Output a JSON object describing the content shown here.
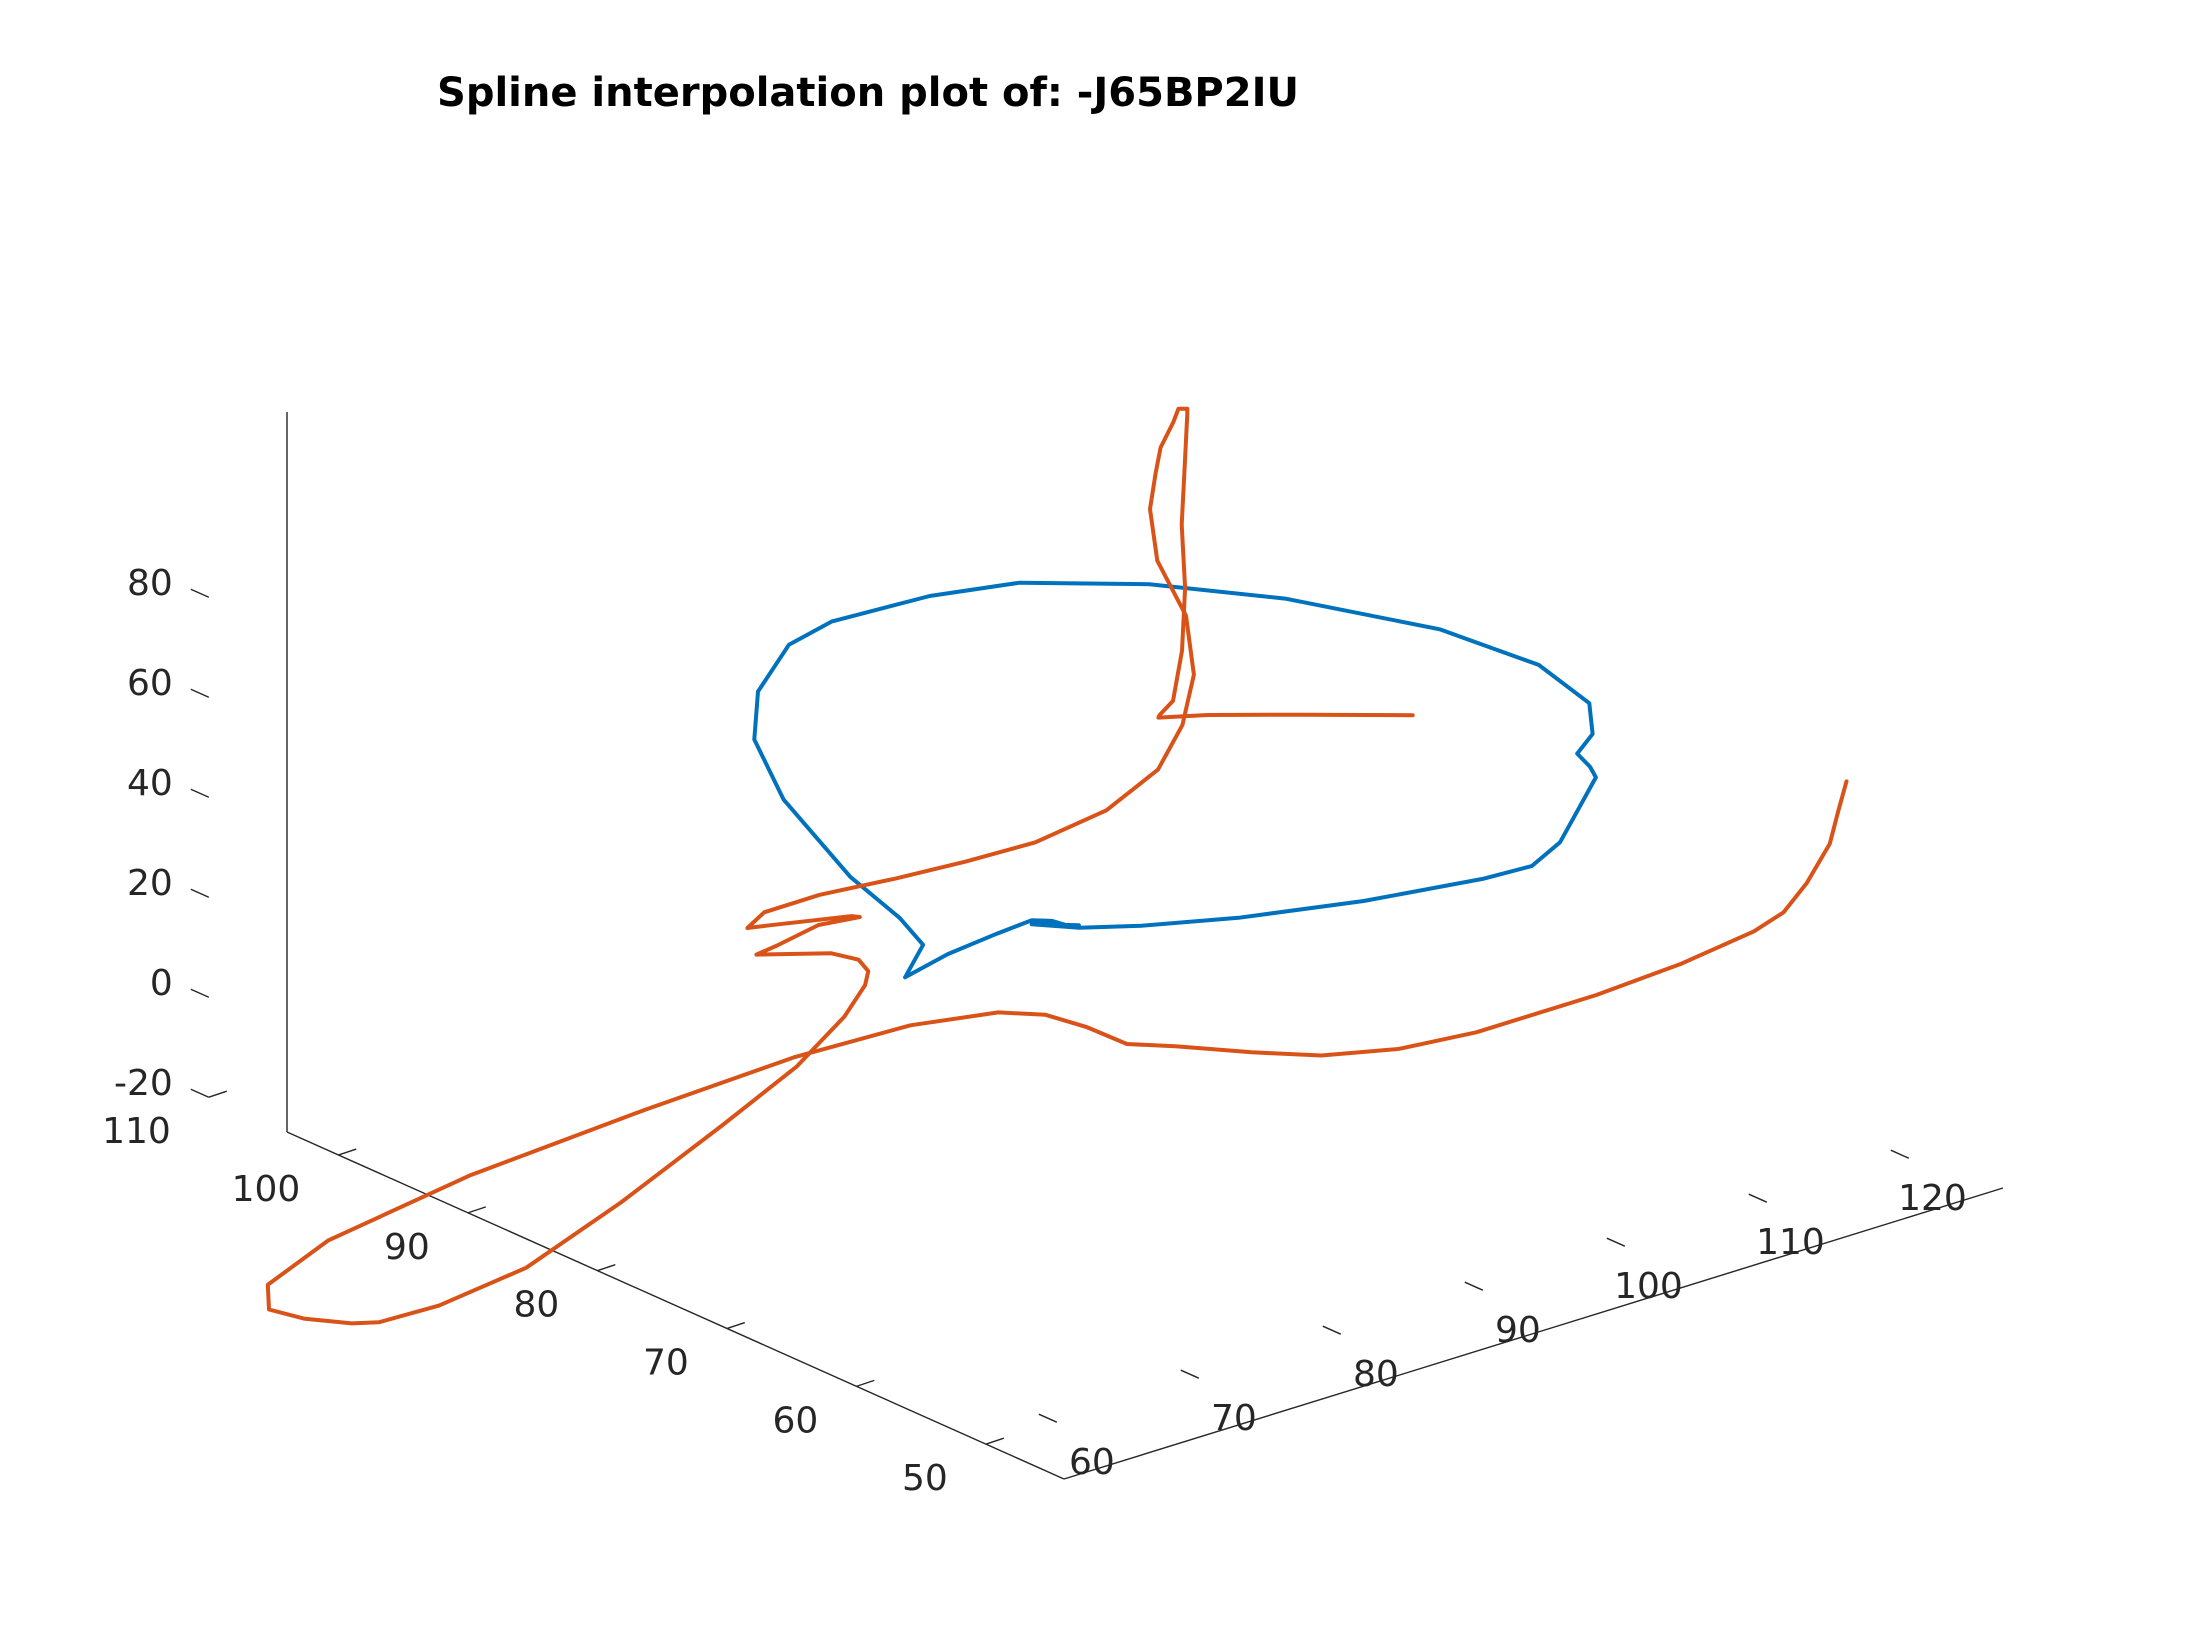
{
  "chart_data": {
    "type": "line",
    "title": "Spline interpolation plot of: -J65BP2IU",
    "xlabel": "",
    "ylabel": "",
    "zlabel": "",
    "grid": false,
    "projection": "3d",
    "x_axis": {
      "ticks": [
        "60",
        "70",
        "80",
        "90",
        "100",
        "110",
        "120"
      ]
    },
    "y_axis": {
      "ticks": [
        "50",
        "60",
        "70",
        "80",
        "90",
        "100",
        "110"
      ]
    },
    "z_axis": {
      "ticks": [
        "-20",
        "0",
        "20",
        "40",
        "60",
        "80"
      ]
    },
    "series": [
      {
        "color": "#0072BD",
        "points": [
          [
            63.0,
            65.0,
            49.0
          ],
          [
            66.0,
            65.0,
            51.0
          ],
          [
            69.0,
            64.5,
            53.0
          ],
          [
            71.0,
            64.0,
            54.5
          ],
          [
            71.8,
            63.3,
            54.5
          ],
          [
            72.2,
            62.8,
            54.0
          ],
          [
            71.2,
            63.4,
            54.2
          ],
          [
            72.5,
            62.0,
            54.5
          ],
          [
            71.0,
            64.0,
            53.7
          ],
          [
            73.0,
            62.5,
            53.0
          ],
          [
            76.0,
            61.0,
            52.5
          ],
          [
            81.0,
            59.0,
            52.0
          ],
          [
            88.0,
            57.0,
            51.5
          ],
          [
            95.0,
            55.5,
            51.5
          ],
          [
            98.0,
            55.0,
            52.0
          ],
          [
            100.0,
            55.0,
            55.0
          ],
          [
            104.0,
            58.0,
            54.5
          ],
          [
            108.0,
            61.0,
            54.0
          ],
          [
            108.5,
            62.0,
            54.5
          ],
          [
            108.5,
            63.0,
            56.0
          ],
          [
            110.5,
            64.0,
            57.0
          ],
          [
            113.0,
            67.0,
            57.5
          ],
          [
            114.0,
            72.0,
            58.5
          ],
          [
            112.5,
            78.0,
            60.0
          ],
          [
            108.0,
            85.0,
            62.0
          ],
          [
            103.0,
            90.0,
            63.5
          ],
          [
            97.5,
            94.0,
            64.0
          ],
          [
            93.0,
            96.0,
            63.0
          ],
          [
            87.0,
            97.0,
            62.0
          ],
          [
            84.0,
            97.0,
            60.0
          ],
          [
            80.0,
            95.0,
            56.5
          ],
          [
            77.0,
            92.0,
            53.0
          ],
          [
            74.5,
            87.0,
            49.0
          ],
          [
            71.0,
            78.0,
            47.0
          ],
          [
            69.0,
            72.0,
            47.5
          ],
          [
            67.0,
            68.0,
            48.5
          ],
          [
            63.0,
            65.0,
            49.0
          ]
        ]
      },
      {
        "color": "#D95319",
        "points": [
          [
            122.0,
            57.0,
            45.5
          ],
          [
            120.5,
            56.0,
            42.0
          ],
          [
            119.0,
            55.0,
            38.0
          ],
          [
            116.0,
            53.5,
            34.5
          ],
          [
            113.0,
            52.0,
            33.0
          ],
          [
            110.0,
            51.0,
            33.0
          ],
          [
            104.0,
            50.0,
            33.0
          ],
          [
            98.0,
            50.0,
            32.0
          ],
          [
            90.0,
            50.5,
            31.0
          ],
          [
            85.0,
            51.0,
            31.5
          ],
          [
            80.0,
            51.5,
            34.0
          ],
          [
            76.0,
            52.5,
            37.0
          ],
          [
            72.0,
            54.0,
            40.0
          ],
          [
            69.5,
            55.0,
            41.5
          ],
          [
            68.0,
            56.5,
            44.5
          ],
          [
            66.5,
            58.0,
            46.5
          ],
          [
            65.0,
            60.0,
            46.0
          ],
          [
            62.0,
            63.5,
            42.0
          ],
          [
            58.0,
            68.0,
            34.0
          ],
          [
            53.0,
            74.0,
            21.0
          ],
          [
            47.0,
            81.0,
            5.0
          ],
          [
            42.0,
            86.5,
            -10.0
          ],
          [
            40.0,
            89.0,
            -20.0
          ],
          [
            41.0,
            90.0,
            -27.0
          ],
          [
            43.0,
            89.5,
            -30.0
          ],
          [
            45.0,
            88.0,
            -31.0
          ],
          [
            46.0,
            87.0,
            -30.5
          ],
          [
            47.5,
            84.0,
            -25.0
          ],
          [
            50.0,
            80.0,
            -15.0
          ],
          [
            53.0,
            76.0,
            0.0
          ],
          [
            56.5,
            72.0,
            17.0
          ],
          [
            59.0,
            69.0,
            30.0
          ],
          [
            61.0,
            67.5,
            40.0
          ],
          [
            62.0,
            67.0,
            46.0
          ],
          [
            62.5,
            67.3,
            48.0
          ],
          [
            62.0,
            67.5,
            50.5
          ],
          [
            61.0,
            68.5,
            51.5
          ],
          [
            58.0,
            71.0,
            51.0
          ],
          [
            59.0,
            70.5,
            52.5
          ],
          [
            61.0,
            69.5,
            56.0
          ],
          [
            63.0,
            68.5,
            57.0
          ],
          [
            62.5,
            68.6,
            57.5
          ],
          [
            59.0,
            71.0,
            56.0
          ],
          [
            58.0,
            71.7,
            55.5
          ],
          [
            59.0,
            71.5,
            58.0
          ],
          [
            62.0,
            70.5,
            60.0
          ],
          [
            66.0,
            69.0,
            61.5
          ],
          [
            70.0,
            68.0,
            62.5
          ],
          [
            74.0,
            67.0,
            64.0
          ],
          [
            79.0,
            67.0,
            66.0
          ],
          [
            84.0,
            68.5,
            68.0
          ],
          [
            88.0,
            71.0,
            70.5
          ],
          [
            92.0,
            74.5,
            73.0
          ],
          [
            96.0,
            79.5,
            75.5
          ],
          [
            99.0,
            85.0,
            77.5
          ],
          [
            103.5,
            90.5,
            77.5
          ],
          [
            108.0,
            95.0,
            75.5
          ],
          [
            112.0,
            99.0,
            72.5
          ],
          [
            117.0,
            103.5,
            68.0
          ],
          [
            121.0,
            107.5,
            62.5
          ],
          [
            123.0,
            109.0,
            59.0
          ],
          [
            123.0,
            109.0,
            58.0
          ],
          [
            121.0,
            107.0,
            52.0
          ],
          [
            118.5,
            104.5,
            45.0
          ],
          [
            116.0,
            101.5,
            38.0
          ],
          [
            113.5,
            99.0,
            30.5
          ],
          [
            111.5,
            97.5,
            24.0
          ],
          [
            111.0,
            98.0,
            21.0
          ],
          [
            111.2,
            98.3,
            20.0
          ],
          [
            113.5,
            97.0,
            20.0
          ],
          [
            117.5,
            94.0,
            20.0
          ],
          [
            122.0,
            90.5,
            20.0
          ]
        ]
      }
    ]
  }
}
